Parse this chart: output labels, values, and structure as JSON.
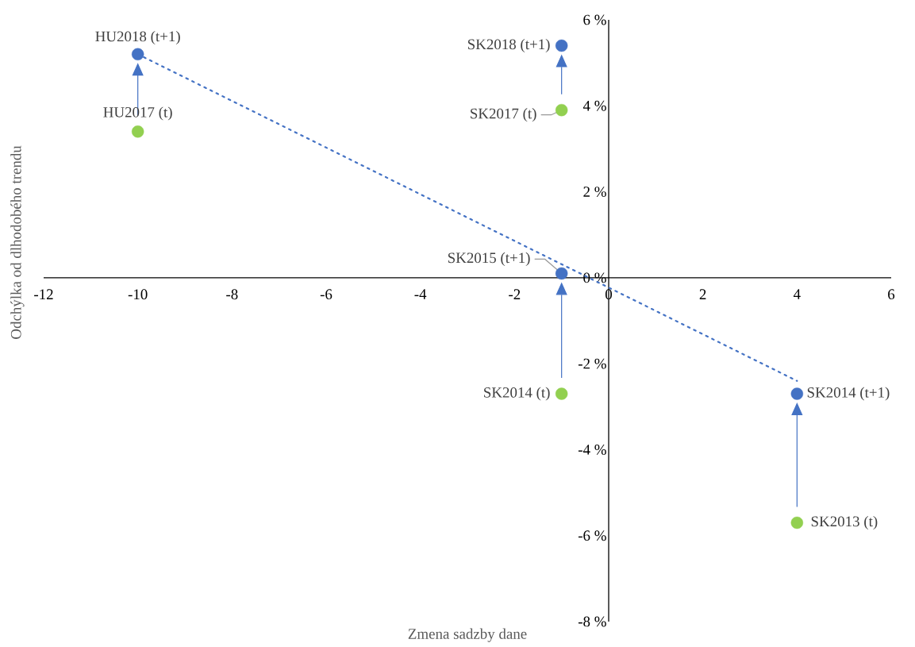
{
  "chart_data": {
    "type": "scatter",
    "xlabel": "Zmena sadzby dane",
    "ylabel": "Odchýlka od dlhodobého trendu",
    "xlim": [
      -12,
      6
    ],
    "ylim": [
      -8,
      6
    ],
    "xticks": [
      -12,
      -10,
      -8,
      -6,
      -4,
      -2,
      0,
      2,
      4,
      6
    ],
    "yticks": [
      {
        "value": -8,
        "label": "-8 %"
      },
      {
        "value": -6,
        "label": "-6 %"
      },
      {
        "value": -4,
        "label": "-4 %"
      },
      {
        "value": -2,
        "label": "-2 %"
      },
      {
        "value": 0,
        "label": "0 %"
      },
      {
        "value": 2,
        "label": "2 %"
      },
      {
        "value": 4,
        "label": "4 %"
      },
      {
        "value": 6,
        "label": "6 %"
      }
    ],
    "marker": "circle",
    "grid": false,
    "series": [
      {
        "color": "#4472c4",
        "type": "line",
        "line_style": "dotted",
        "marker": "none",
        "x": [
          -10,
          4
        ],
        "values": [
          5.2,
          -2.4
        ]
      },
      {
        "color": "#92d050",
        "x": [
          -10,
          -1,
          -1,
          4
        ],
        "values": [
          3.4,
          3.9,
          -2.7,
          -5.7
        ]
      },
      {
        "color": "#4472c4",
        "x": [
          -10,
          -1,
          -1,
          4
        ],
        "values": [
          5.2,
          5.4,
          0.1,
          -2.7
        ]
      }
    ],
    "annotations": [
      {
        "text": "HU2018 (t+1)",
        "x": -10,
        "y": 5.2
      },
      {
        "text": "HU2017 (t)",
        "x": -10,
        "y": 3.4
      },
      {
        "text": "SK2018 (t+1)",
        "x": -1,
        "y": 5.4
      },
      {
        "text": "SK2017 (t)",
        "x": -1,
        "y": 3.9
      },
      {
        "text": "SK2015 (t+1)",
        "x": -1,
        "y": 0.1
      },
      {
        "text": "SK2014 (t)",
        "x": -1,
        "y": -2.7
      },
      {
        "text": "SK2014 (t+1)",
        "x": 4,
        "y": -2.7
      },
      {
        "text": "SK2013 (t)",
        "x": 4,
        "y": -5.7
      }
    ]
  }
}
